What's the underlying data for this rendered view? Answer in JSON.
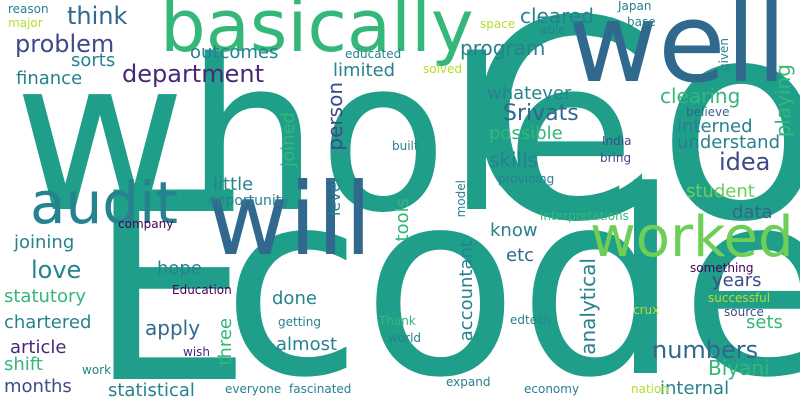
{
  "palette": {
    "c1": "#3e4a89",
    "c2": "#31688e",
    "c3": "#26828e",
    "c4": "#1f9e89",
    "c5": "#35b779",
    "c6": "#6ece58",
    "c7": "#b5de2b",
    "c8": "#440154",
    "c9": "#482878",
    "c10": "#fde725"
  },
  "words": [
    {
      "text": "whole",
      "color": "#1f9e89"
    },
    {
      "text": "Co",
      "color": "#1f9e89"
    },
    {
      "text": "code",
      "color": "#1f9e89"
    },
    {
      "text": "E",
      "color": "#1f9e89"
    },
    {
      "text": "basically",
      "color": "#35b779"
    },
    {
      "text": "well",
      "color": "#31688e"
    },
    {
      "text": "will",
      "color": "#31688e"
    },
    {
      "text": "audit",
      "color": "#26828e"
    },
    {
      "text": "worked",
      "color": "#6ece58"
    },
    {
      "text": "department",
      "color": "#482878"
    },
    {
      "text": "problem",
      "color": "#3e4a89"
    },
    {
      "text": "think",
      "color": "#31688e"
    },
    {
      "text": "cleared",
      "color": "#26828e"
    },
    {
      "text": "program",
      "color": "#26828e"
    },
    {
      "text": "outcomes",
      "color": "#26828e"
    },
    {
      "text": "sorts",
      "color": "#26828e"
    },
    {
      "text": "finance",
      "color": "#26828e"
    },
    {
      "text": "limited",
      "color": "#26828e"
    },
    {
      "text": "whatever",
      "color": "#26828e"
    },
    {
      "text": "Srivats",
      "color": "#31688e"
    },
    {
      "text": "clearing",
      "color": "#35b779"
    },
    {
      "text": "interned",
      "color": "#26828e"
    },
    {
      "text": "understand",
      "color": "#26828e"
    },
    {
      "text": "idea",
      "color": "#3e4a89"
    },
    {
      "text": "possible",
      "color": "#35b779"
    },
    {
      "text": "skills",
      "color": "#26828e"
    },
    {
      "text": "student",
      "color": "#6ece58"
    },
    {
      "text": "data",
      "color": "#31688e"
    },
    {
      "text": "playing",
      "color": "#35b779"
    },
    {
      "text": "person",
      "color": "#3e4a89"
    },
    {
      "text": "joined",
      "color": "#35b779"
    },
    {
      "text": "little",
      "color": "#26828e"
    },
    {
      "text": "opportunity",
      "color": "#26828e"
    },
    {
      "text": "level",
      "color": "#26828e"
    },
    {
      "text": "tools",
      "color": "#35b779"
    },
    {
      "text": "know",
      "color": "#26828e"
    },
    {
      "text": "etc",
      "color": "#31688e"
    },
    {
      "text": "joining",
      "color": "#26828e"
    },
    {
      "text": "love",
      "color": "#26828e"
    },
    {
      "text": "hope",
      "color": "#26828e"
    },
    {
      "text": "statutory",
      "color": "#35b779"
    },
    {
      "text": "chartered",
      "color": "#26828e"
    },
    {
      "text": "apply",
      "color": "#31688e"
    },
    {
      "text": "article",
      "color": "#482878"
    },
    {
      "text": "shift",
      "color": "#35b779"
    },
    {
      "text": "months",
      "color": "#3e4a89"
    },
    {
      "text": "statistical",
      "color": "#26828e"
    },
    {
      "text": "three",
      "color": "#35b779"
    },
    {
      "text": "done",
      "color": "#26828e"
    },
    {
      "text": "almost",
      "color": "#26828e"
    },
    {
      "text": "accountant",
      "color": "#26828e"
    },
    {
      "text": "analytical",
      "color": "#26828e"
    },
    {
      "text": "numbers",
      "color": "#31688e"
    },
    {
      "text": "Biyani",
      "color": "#35b779"
    },
    {
      "text": "internal",
      "color": "#26828e"
    },
    {
      "text": "years",
      "color": "#3e4a89"
    },
    {
      "text": "sets",
      "color": "#35b779"
    },
    {
      "text": "reason",
      "color": "#26828e"
    },
    {
      "text": "major",
      "color": "#b5de2b"
    },
    {
      "text": "Japan",
      "color": "#26828e"
    },
    {
      "text": "space",
      "color": "#b5de2b"
    },
    {
      "text": "able",
      "color": "#26828e"
    },
    {
      "text": "base",
      "color": "#26828e"
    },
    {
      "text": "educated",
      "color": "#26828e"
    },
    {
      "text": "solved",
      "color": "#b5de2b"
    },
    {
      "text": "given",
      "color": "#26828e"
    },
    {
      "text": "believe",
      "color": "#31688e"
    },
    {
      "text": "India",
      "color": "#3e4a89"
    },
    {
      "text": "bring",
      "color": "#3e4a89"
    },
    {
      "text": "built",
      "color": "#26828e"
    },
    {
      "text": "providing",
      "color": "#26828e"
    },
    {
      "text": "interpretations",
      "color": "#35b779"
    },
    {
      "text": "model",
      "color": "#26828e"
    },
    {
      "text": "company",
      "color": "#440154"
    },
    {
      "text": "Education",
      "color": "#440154"
    },
    {
      "text": "getting",
      "color": "#26828e"
    },
    {
      "text": "Thank",
      "color": "#35b779"
    },
    {
      "text": "world",
      "color": "#26828e"
    },
    {
      "text": "edtech",
      "color": "#26828e"
    },
    {
      "text": "something",
      "color": "#440154"
    },
    {
      "text": "successful",
      "color": "#b5de2b"
    },
    {
      "text": "source",
      "color": "#3e4a89"
    },
    {
      "text": "crux",
      "color": "#b5de2b"
    },
    {
      "text": "wish",
      "color": "#482878"
    },
    {
      "text": "work",
      "color": "#26828e"
    },
    {
      "text": "everyone",
      "color": "#26828e"
    },
    {
      "text": "fascinated",
      "color": "#26828e"
    },
    {
      "text": "expand",
      "color": "#26828e"
    },
    {
      "text": "economy",
      "color": "#26828e"
    },
    {
      "text": "nation",
      "color": "#b5de2b"
    }
  ]
}
